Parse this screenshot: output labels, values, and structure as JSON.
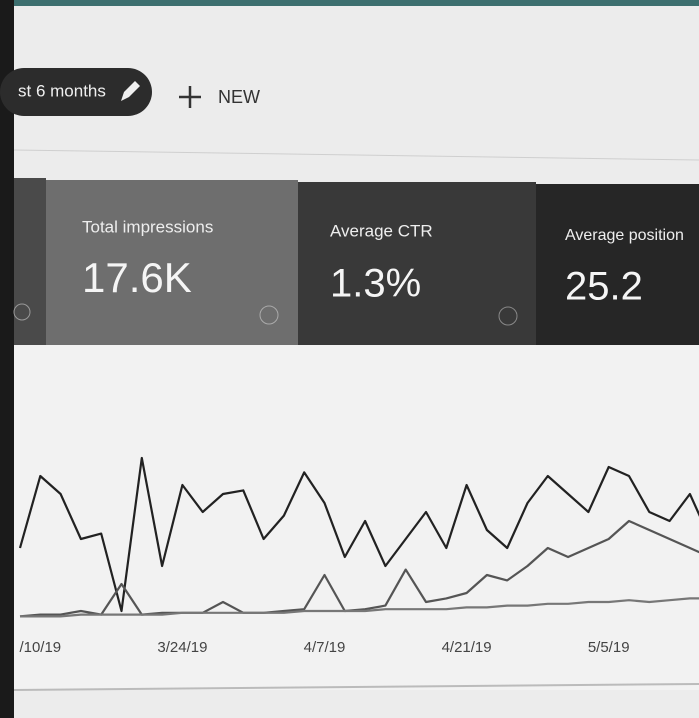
{
  "toolbar": {
    "date_filter": "st 6 months",
    "new_button": "NEW"
  },
  "metrics": [
    {
      "label": "Total impressions",
      "value": "17.6K"
    },
    {
      "label": "Average CTR",
      "value": "1.3%"
    },
    {
      "label": "Average position",
      "value": "25.2"
    }
  ],
  "chart_data": {
    "type": "line",
    "categories": [
      null,
      "/10/19",
      null,
      null,
      null,
      null,
      null,
      null,
      "3/24/19",
      null,
      null,
      null,
      null,
      null,
      null,
      "4/7/19",
      null,
      null,
      null,
      null,
      null,
      null,
      "4/21/19",
      null,
      null,
      null,
      null,
      null,
      null,
      "5/5/19",
      null,
      null,
      null,
      null,
      null
    ],
    "series": [
      {
        "color": "#222222",
        "values": [
          40,
          80,
          70,
          45,
          48,
          5,
          90,
          30,
          75,
          60,
          70,
          72,
          45,
          58,
          82,
          65,
          35,
          55,
          30,
          45,
          60,
          40,
          75,
          50,
          40,
          65,
          80,
          70,
          60,
          85,
          80,
          60,
          55,
          70,
          45
        ]
      },
      {
        "color": "#555555",
        "values": [
          2,
          3,
          3,
          5,
          3,
          20,
          3,
          4,
          4,
          4,
          10,
          4,
          4,
          5,
          6,
          25,
          5,
          6,
          8,
          28,
          10,
          12,
          15,
          25,
          22,
          30,
          40,
          35,
          40,
          45,
          55,
          50,
          45,
          40,
          35
        ]
      },
      {
        "color": "#777777",
        "values": [
          2,
          2,
          2,
          3,
          3,
          3,
          3,
          3,
          4,
          4,
          4,
          4,
          4,
          4,
          5,
          5,
          5,
          5,
          6,
          6,
          6,
          6,
          7,
          7,
          8,
          8,
          9,
          9,
          10,
          10,
          11,
          10,
          11,
          12,
          12
        ]
      }
    ],
    "ylim": [
      0,
      100
    ]
  }
}
